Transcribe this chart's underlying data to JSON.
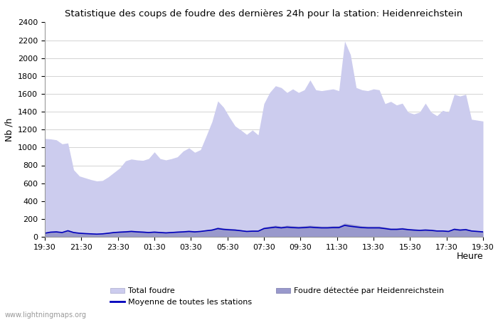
{
  "title": "Statistique des coups de foudre des dernières 24h pour la station: Heidenreichstein",
  "ylabel": "Nb /h",
  "xlabel": "Heure",
  "ylim": [
    0,
    2400
  ],
  "yticks": [
    0,
    200,
    400,
    600,
    800,
    1000,
    1200,
    1400,
    1600,
    1800,
    2000,
    2200,
    2400
  ],
  "xtick_labels": [
    "19:30",
    "21:30",
    "23:30",
    "01:30",
    "03:30",
    "05:30",
    "07:30",
    "09:30",
    "11:30",
    "13:30",
    "15:30",
    "17:30",
    "19:30"
  ],
  "watermark": "www.lightningmaps.org",
  "color_total": "#ccccee",
  "color_detected": "#9999cc",
  "color_moyenne": "#0000bb",
  "total_foudre": [
    1100,
    1095,
    1085,
    1040,
    1050,
    750,
    680,
    660,
    640,
    625,
    630,
    670,
    720,
    770,
    850,
    870,
    860,
    855,
    875,
    950,
    875,
    860,
    875,
    895,
    960,
    995,
    945,
    975,
    1130,
    1290,
    1520,
    1450,
    1340,
    1240,
    1195,
    1145,
    1195,
    1140,
    1490,
    1615,
    1690,
    1670,
    1615,
    1655,
    1615,
    1645,
    1755,
    1645,
    1635,
    1645,
    1655,
    1635,
    2190,
    2040,
    1670,
    1645,
    1635,
    1655,
    1645,
    1490,
    1515,
    1475,
    1495,
    1395,
    1375,
    1395,
    1495,
    1395,
    1355,
    1415,
    1395,
    1595,
    1575,
    1595,
    1315,
    1305,
    1295
  ],
  "detected_foudre": [
    50,
    60,
    65,
    50,
    75,
    55,
    48,
    44,
    38,
    33,
    38,
    48,
    58,
    63,
    68,
    72,
    68,
    63,
    58,
    63,
    58,
    53,
    58,
    63,
    68,
    72,
    68,
    68,
    78,
    88,
    108,
    98,
    93,
    88,
    78,
    68,
    73,
    73,
    108,
    118,
    128,
    118,
    128,
    123,
    118,
    123,
    128,
    123,
    118,
    118,
    123,
    123,
    152,
    142,
    132,
    122,
    118,
    118,
    118,
    108,
    98,
    98,
    103,
    93,
    88,
    83,
    88,
    83,
    73,
    73,
    68,
    98,
    88,
    93,
    73,
    68,
    63
  ],
  "moyenne_stations": [
    40,
    52,
    55,
    48,
    68,
    48,
    40,
    36,
    33,
    30,
    33,
    40,
    48,
    52,
    55,
    60,
    55,
    52,
    48,
    52,
    48,
    44,
    48,
    52,
    55,
    60,
    55,
    60,
    68,
    75,
    92,
    83,
    78,
    75,
    68,
    60,
    63,
    63,
    92,
    100,
    108,
    100,
    108,
    103,
    100,
    103,
    108,
    103,
    100,
    100,
    103,
    103,
    128,
    118,
    110,
    103,
    100,
    100,
    100,
    92,
    83,
    83,
    88,
    80,
    75,
    72,
    75,
    72,
    65,
    65,
    60,
    83,
    75,
    80,
    65,
    60,
    55
  ]
}
